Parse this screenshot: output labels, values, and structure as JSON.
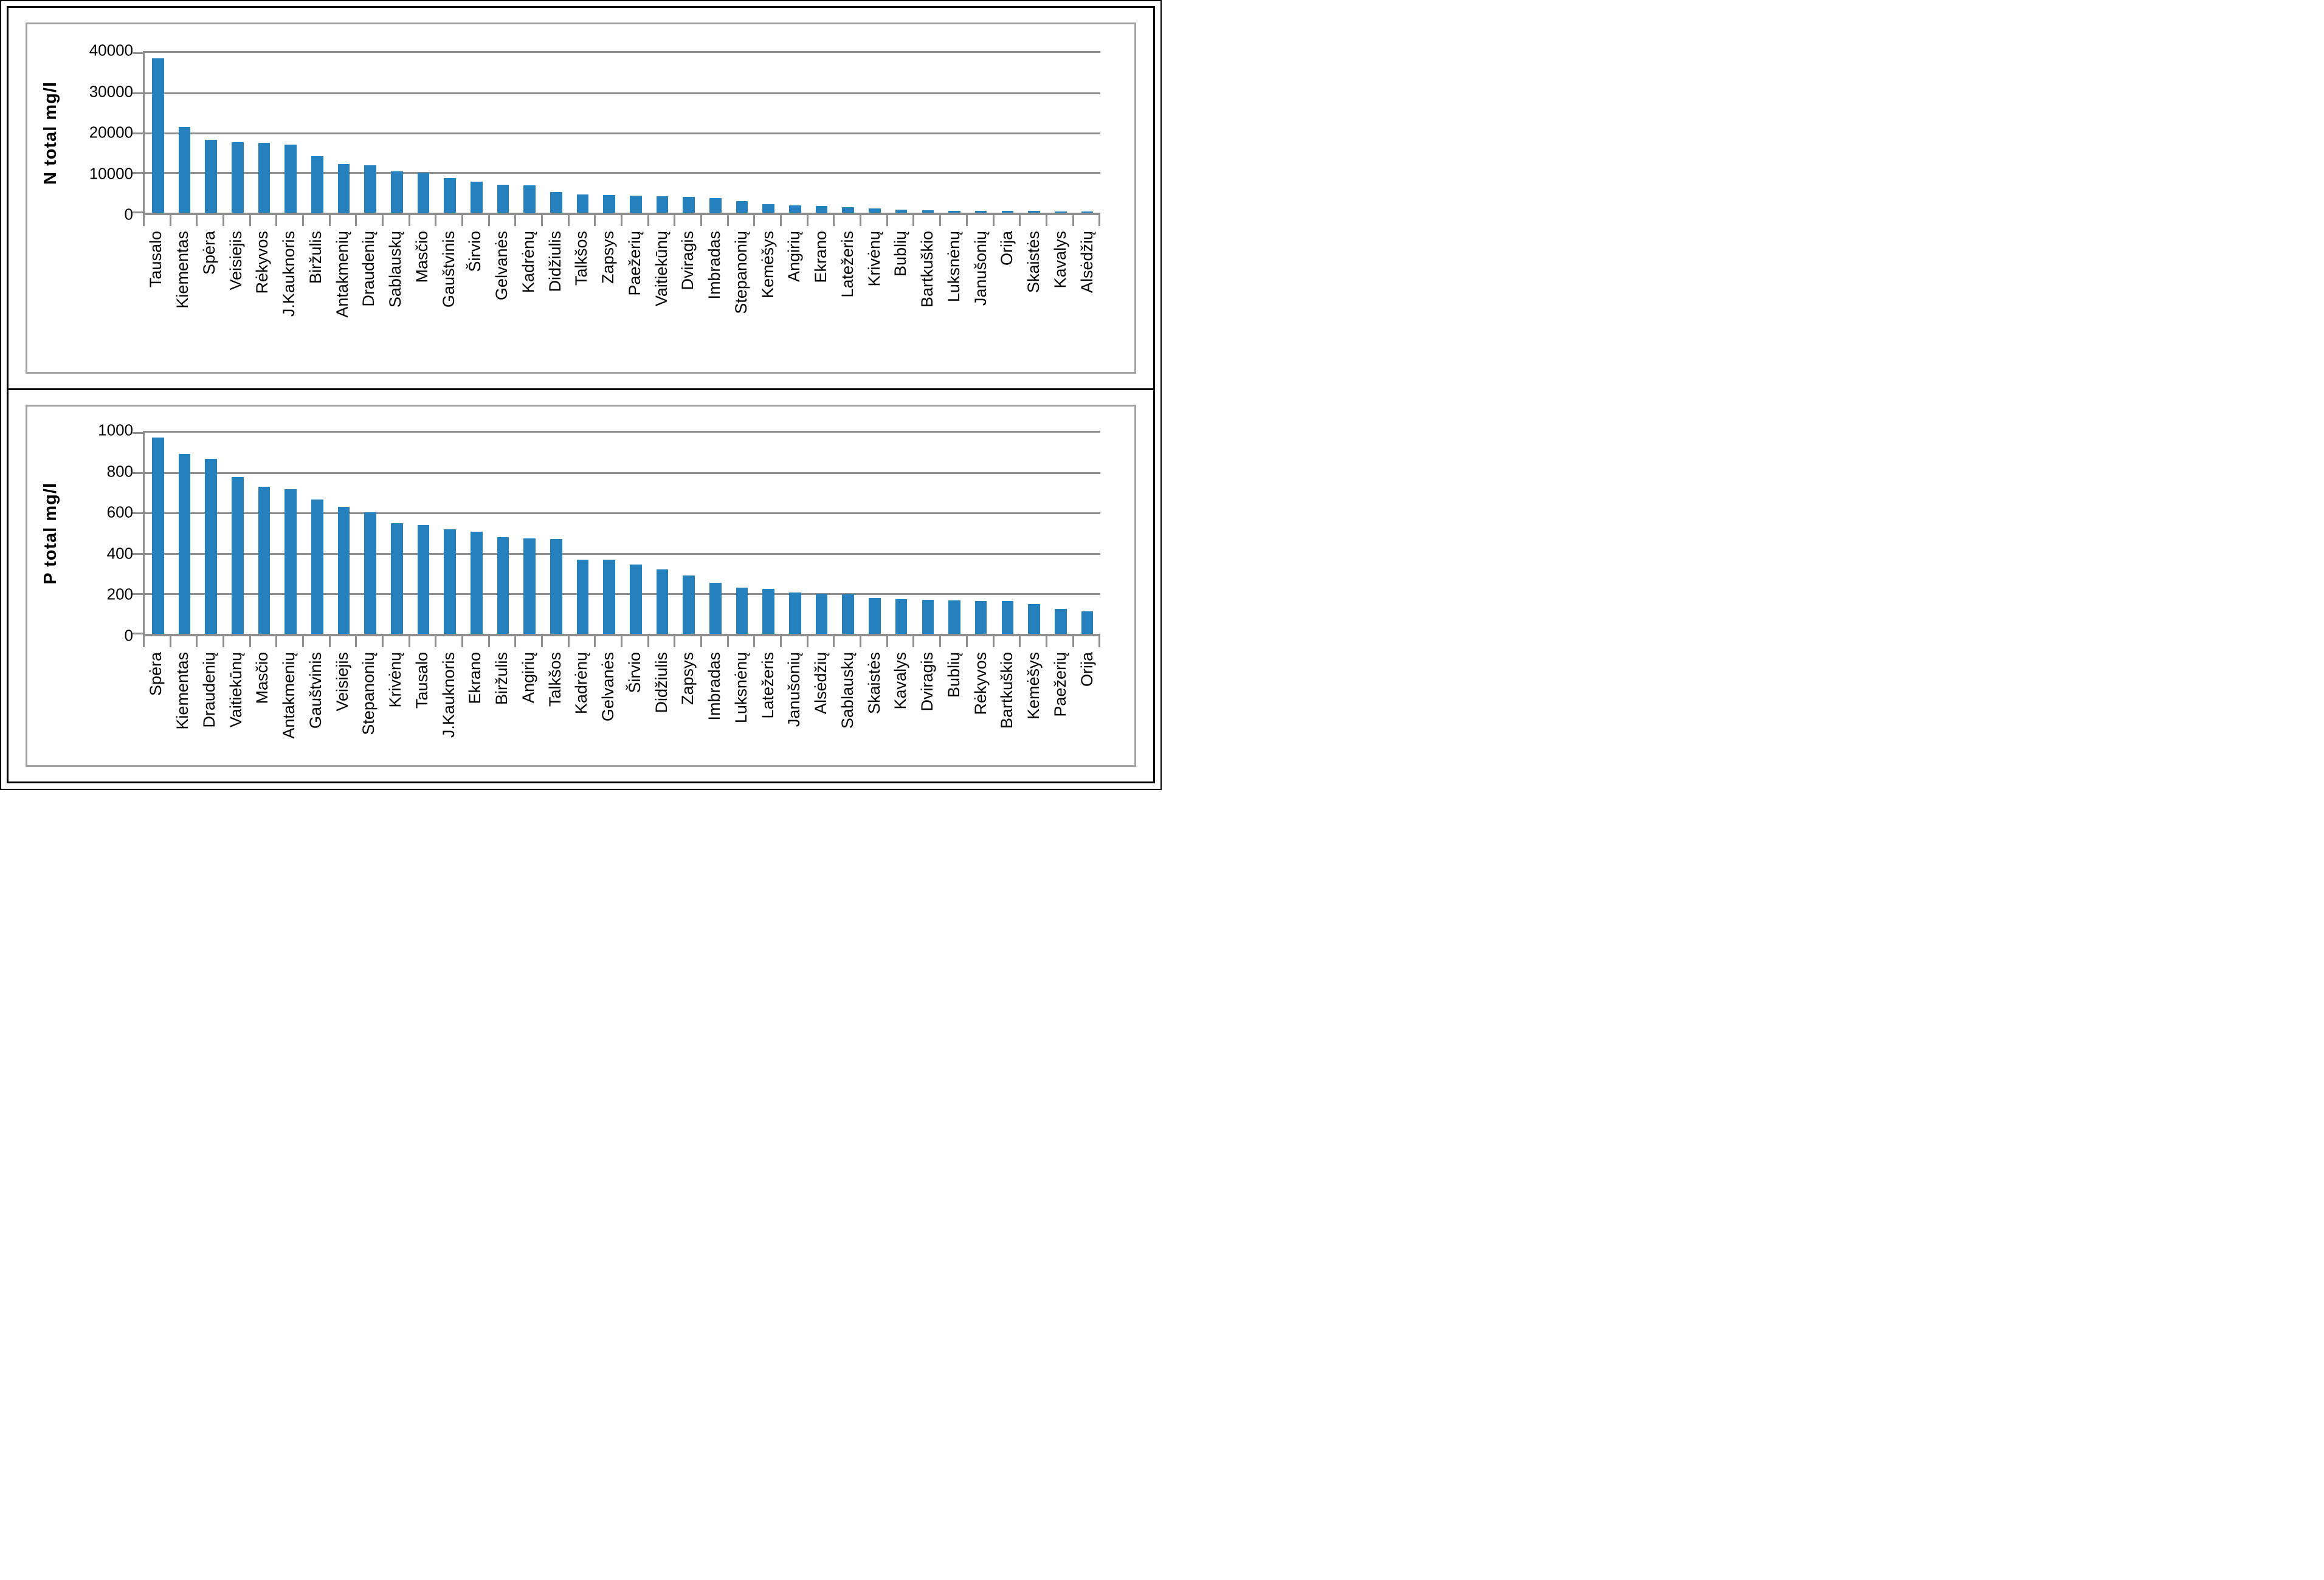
{
  "colors": {
    "bar": "#2580be",
    "gridline": "#8e8e8e",
    "axis_line": "#8e8e8e",
    "frame_border": "#a3a3a3",
    "panel_border": "#000000",
    "text": "#000000",
    "background": "#ffffff"
  },
  "chart_data": [
    {
      "type": "bar",
      "title": "",
      "xlabel": "",
      "ylabel": "N total mg/l",
      "ylim": [
        0,
        40000
      ],
      "ytick_interval": 10000,
      "yticks": [
        "40000",
        "30000",
        "20000",
        "10000",
        "0"
      ],
      "grid": "horizontal",
      "legend": "none",
      "categories": [
        "Tausalo",
        "Kiementas",
        "Spėra",
        "Veisiejis",
        "Rėkyvos",
        "J.Kauknoris",
        "Biržulis",
        "Antakmenių",
        "Draudenių",
        "Sablauskų",
        "Masčio",
        "Gauštvinis",
        "Širvio",
        "Gelvanės",
        "Kadrėnų",
        "Didžiulis",
        "Talkšos",
        "Zapsys",
        "Paežerių",
        "Vaitiekūnų",
        "Dviragis",
        "Imbradas",
        "Stepanonių",
        "Kemėšys",
        "Angirių",
        "Ekrano",
        "Latežeris",
        "Krivėnų",
        "Bublių",
        "Bartkuškio",
        "Luksnėnų",
        "Janušonių",
        "Orija",
        "Skaistės",
        "Kavalys",
        "Alsėdžių"
      ],
      "values": [
        38700,
        21500,
        18200,
        17600,
        17500,
        17000,
        14200,
        12100,
        11900,
        10400,
        10000,
        8600,
        7800,
        7000,
        6900,
        5100,
        4500,
        4400,
        4300,
        4100,
        4000,
        3600,
        2900,
        2100,
        1800,
        1700,
        1400,
        1100,
        800,
        620,
        510,
        450,
        430,
        400,
        380,
        330
      ]
    },
    {
      "type": "bar",
      "title": "",
      "xlabel": "",
      "ylabel": "P total mg/l",
      "ylim": [
        0,
        1000
      ],
      "ytick_interval": 200,
      "yticks": [
        "1000",
        "800",
        "600",
        "400",
        "200",
        "0"
      ],
      "grid": "horizontal",
      "legend": "none",
      "categories": [
        "Spėra",
        "Kiementas",
        "Draudenių",
        "Vaitiekūnų",
        "Masčio",
        "Antakmenių",
        "Gauštvinis",
        "Veisiejis",
        "Stepanonių",
        "Krivėnų",
        "Tausalo",
        "J.Kauknoris",
        "Ekrano",
        "Biržulis",
        "Angirių",
        "Talkšos",
        "Kadrėnų",
        "Gelvanės",
        "Širvio",
        "Didžiulis",
        "Zapsys",
        "Imbradas",
        "Luksnėnų",
        "Latežeris",
        "Janušonių",
        "Alsėdžių",
        "Sablauskų",
        "Skaistės",
        "Kavalys",
        "Dviragis",
        "Bublių",
        "Rėkyvos",
        "Bartkuškio",
        "Kemėšys",
        "Paežerių",
        "Orija"
      ],
      "values": [
        975,
        895,
        870,
        780,
        730,
        720,
        668,
        632,
        603,
        550,
        540,
        520,
        508,
        480,
        475,
        470,
        370,
        368,
        345,
        320,
        290,
        253,
        230,
        225,
        205,
        197,
        195,
        178,
        173,
        170,
        166,
        163,
        162,
        148,
        124,
        111
      ]
    }
  ]
}
